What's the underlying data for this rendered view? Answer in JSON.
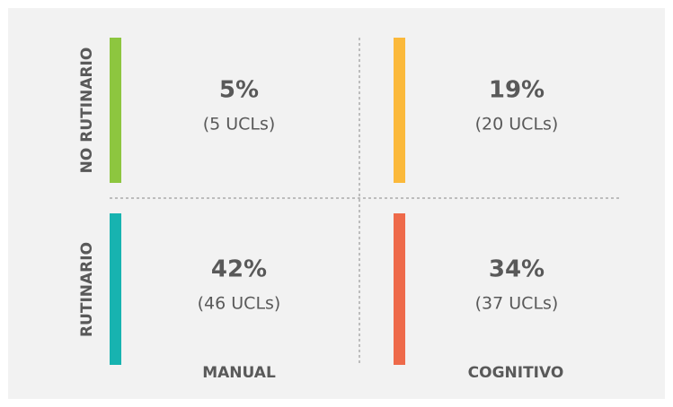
{
  "rows": [
    "NO RUTINARIO",
    "RUTINARIO"
  ],
  "columns": [
    "MANUAL",
    "COGNITIVO"
  ],
  "quadrants": [
    [
      {
        "percent": "5%",
        "count": "(5 UCLs)"
      },
      {
        "percent": "19%",
        "count": "(20 UCLs)"
      }
    ],
    [
      {
        "percent": "42%",
        "count": "(46 UCLs)"
      },
      {
        "percent": "34%",
        "count": "(37 UCLs)"
      }
    ]
  ]
}
